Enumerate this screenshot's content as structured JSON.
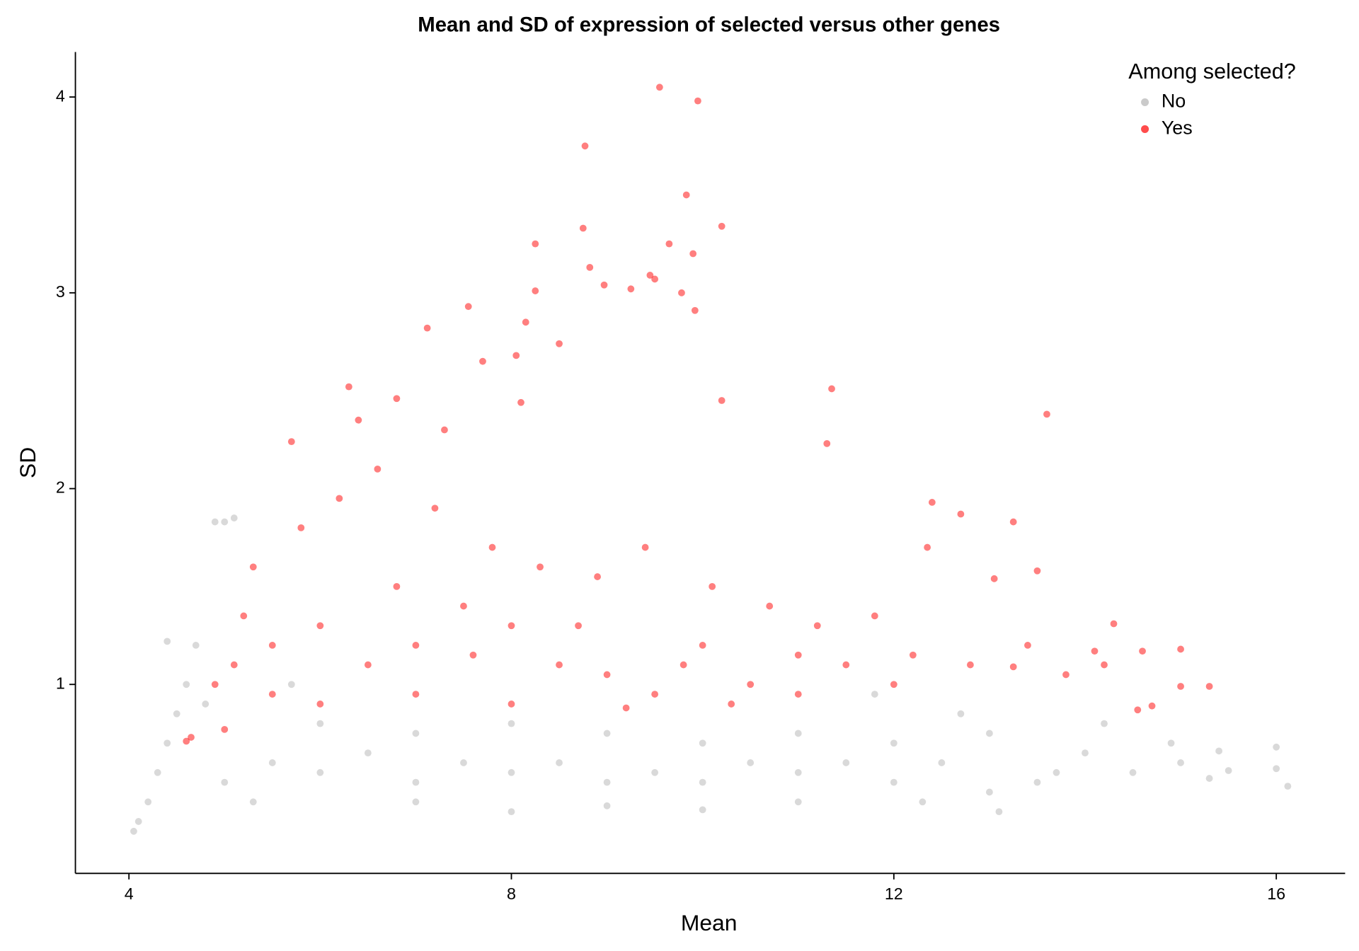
{
  "chart_data": {
    "type": "scatter",
    "title": "Mean and SD of expression of selected versus other genes",
    "x_label": "Mean",
    "y_label": "SD",
    "legend_title": "Among selected?",
    "legend_position": "top-right",
    "grid": false,
    "xlim": [
      3.44,
      16.72
    ],
    "ylim": [
      0.035,
      4.23
    ],
    "xticks": [
      4,
      8,
      12,
      16
    ],
    "yticks": [
      1,
      2,
      3,
      4
    ],
    "series": [
      {
        "name": "No",
        "color": "#b3b3b3",
        "x": [
          4.05,
          4.1,
          4.2,
          4.3,
          4.4,
          4.5,
          4.6,
          4.7,
          4.4,
          5.0,
          5.1,
          4.9,
          5,
          5.5,
          6,
          6.5,
          7,
          7.5,
          8,
          8.5,
          9,
          9.5,
          10,
          10.5,
          11,
          11.5,
          12,
          6,
          7,
          8,
          9,
          10,
          11,
          12,
          7,
          8,
          9,
          10,
          11,
          12.5,
          13,
          13,
          13.5,
          14,
          14.5,
          15,
          15.3,
          15.5,
          16,
          16,
          16.12,
          13.1,
          12.7,
          14.2,
          14.9,
          5.3,
          4.8,
          5.7,
          11.8,
          12.3,
          13.7,
          15.4
        ],
        "values": [
          0.25,
          0.3,
          0.4,
          0.55,
          0.7,
          0.85,
          1.0,
          1.2,
          1.22,
          1.83,
          1.85,
          1.83,
          0.5,
          0.6,
          0.55,
          0.65,
          0.5,
          0.6,
          0.55,
          0.6,
          0.5,
          0.55,
          0.5,
          0.6,
          0.55,
          0.6,
          0.5,
          0.8,
          0.75,
          0.8,
          0.75,
          0.7,
          0.75,
          0.7,
          0.4,
          0.35,
          0.38,
          0.36,
          0.4,
          0.6,
          0.45,
          0.75,
          0.5,
          0.65,
          0.55,
          0.6,
          0.52,
          0.56,
          0.68,
          0.57,
          0.48,
          0.35,
          0.85,
          0.8,
          0.7,
          0.4,
          0.9,
          1.0,
          0.95,
          0.4,
          0.55,
          0.66
        ]
      },
      {
        "name": "Yes",
        "color": "#ff0000",
        "x": [
          9.55,
          9.95,
          8.77,
          9.83,
          10.2,
          8.75,
          9.65,
          8.25,
          9.9,
          8.82,
          9.5,
          9.45,
          8.97,
          9.25,
          8.25,
          9.78,
          9.92,
          7.55,
          7.12,
          8.15,
          8.5,
          13.6,
          11.35,
          6.3,
          6.8,
          10.2,
          11.3,
          12.4,
          12.7,
          13.25,
          13.05,
          13.5,
          12.35,
          14.3,
          15,
          15.3,
          15.0,
          14.7,
          14.55,
          14.1,
          14.6,
          13.25,
          4.6,
          4.65,
          5.0,
          5.1,
          5.5,
          6,
          6.5,
          7,
          7.5,
          8,
          8.5,
          9,
          9.5,
          10,
          10.5,
          11,
          11.5,
          12,
          5.3,
          5.8,
          6.2,
          6.6,
          7.2,
          7.8,
          8.3,
          8.9,
          9.4,
          10.1,
          10.7,
          11.2,
          11.8,
          12.2,
          12.8,
          13.4,
          13.8,
          14.2,
          6,
          7,
          8,
          5.5,
          9.2,
          10.3,
          4.9,
          5.2,
          6.8,
          7.6,
          8.7,
          9.8,
          11.0,
          5.7,
          6.4,
          7.3,
          8.05,
          7.7,
          8.1
        ],
        "values": [
          4.05,
          3.98,
          3.75,
          3.5,
          3.34,
          3.33,
          3.25,
          3.25,
          3.2,
          3.13,
          3.07,
          3.09,
          3.04,
          3.02,
          3.01,
          3.0,
          2.91,
          2.93,
          2.82,
          2.85,
          2.74,
          2.38,
          2.51,
          2.52,
          2.46,
          2.45,
          2.23,
          1.93,
          1.87,
          1.83,
          1.54,
          1.58,
          1.7,
          1.31,
          1.18,
          0.99,
          0.99,
          0.89,
          0.87,
          1.17,
          1.17,
          1.09,
          0.71,
          0.73,
          0.77,
          1.1,
          1.2,
          1.3,
          1.1,
          1.2,
          1.4,
          1.3,
          1.1,
          1.05,
          0.95,
          1.2,
          1.0,
          0.95,
          1.1,
          1.0,
          1.6,
          1.8,
          1.95,
          2.1,
          1.9,
          1.7,
          1.6,
          1.55,
          1.7,
          1.5,
          1.4,
          1.3,
          1.35,
          1.15,
          1.1,
          1.2,
          1.05,
          1.1,
          0.9,
          0.95,
          0.9,
          0.95,
          0.88,
          0.9,
          1.0,
          1.35,
          1.5,
          1.15,
          1.3,
          1.1,
          1.15,
          2.24,
          2.35,
          2.3,
          2.68,
          2.65,
          2.44
        ]
      }
    ]
  }
}
